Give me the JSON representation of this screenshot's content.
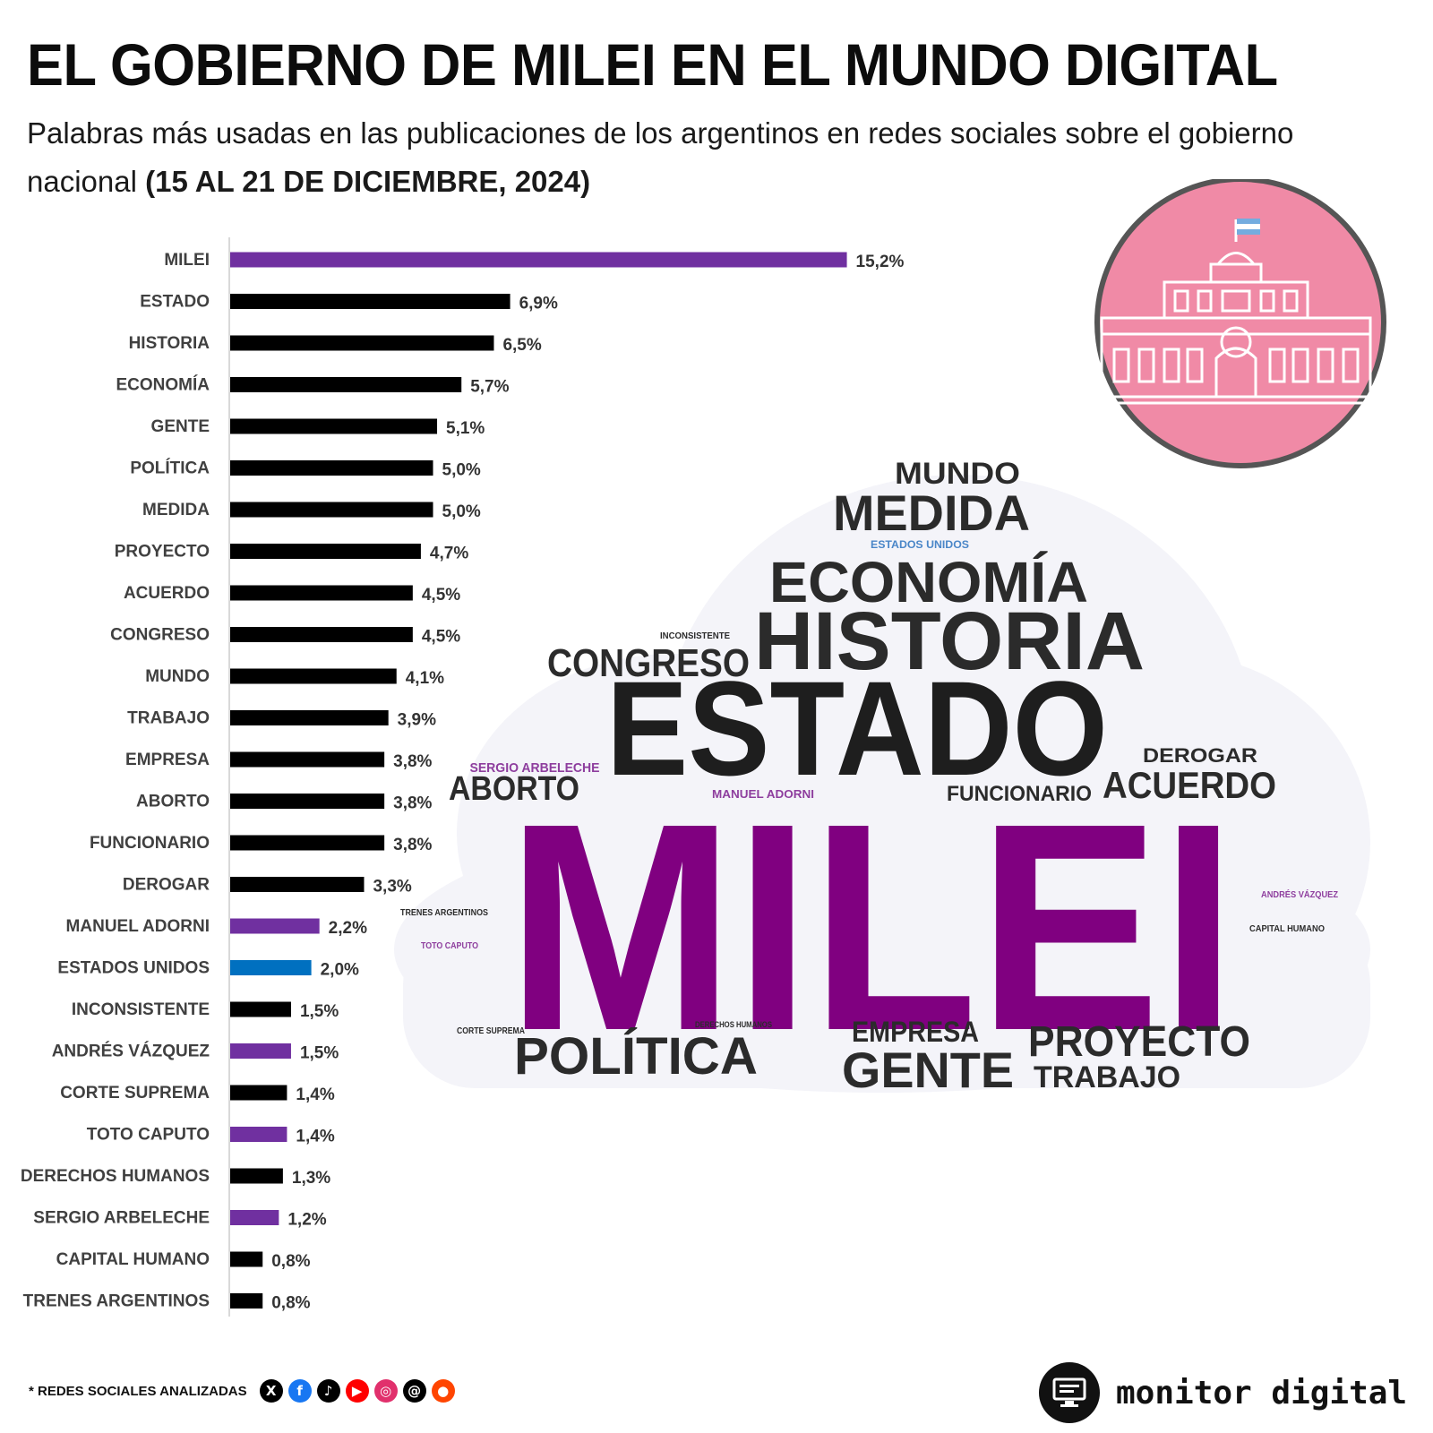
{
  "header": {
    "title": "EL GOBIERNO DE MILEI EN EL MUNDO DIGITAL",
    "subtitle": "Palabras más usadas en las publicaciones de los argentinos en redes sociales sobre el gobierno nacional",
    "date_range": "(15 AL 21 DE DICIEMBRE, 2024)"
  },
  "colors": {
    "purple_bar": "#7030a0",
    "blue_bar": "#0070c0",
    "black_bar": "#000000",
    "cloud_purple": "#800080",
    "cloud_dark": "#2b2b2b",
    "cloud_blue": "#4a86c8",
    "cloud_bg": "#f4f4f9",
    "emblem_pink": "#f08aa6",
    "emblem_border": "#555555"
  },
  "chart_data": {
    "type": "bar",
    "orientation": "horizontal",
    "title": "Palabras más usadas en las publicaciones de los argentinos en redes sociales sobre el gobierno nacional (15 AL 21 DE DICIEMBRE, 2024)",
    "xlabel": "",
    "ylabel": "",
    "xlim": [
      0,
      15.2
    ],
    "grid": false,
    "value_format": "percent_comma_1",
    "categories": [
      "MILEI",
      "ESTADO",
      "HISTORIA",
      "ECONOMÍA",
      "GENTE",
      "POLÍTICA",
      "MEDIDA",
      "PROYECTO",
      "ACUERDO",
      "CONGRESO",
      "MUNDO",
      "TRABAJO",
      "EMPRESA",
      "ABORTO",
      "FUNCIONARIO",
      "DEROGAR",
      "MANUEL ADORNI",
      "ESTADOS UNIDOS",
      "INCONSISTENTE",
      "ANDRÉS VÁZQUEZ",
      "CORTE SUPREMA",
      "TOTO CAPUTO",
      "DERECHOS HUMANOS",
      "SERGIO ARBELECHE",
      "CAPITAL HUMANO",
      "TRENES ARGENTINOS"
    ],
    "values": [
      15.2,
      6.9,
      6.5,
      5.7,
      5.1,
      5.0,
      5.0,
      4.7,
      4.5,
      4.5,
      4.1,
      3.9,
      3.8,
      3.8,
      3.8,
      3.3,
      2.2,
      2.0,
      1.5,
      1.5,
      1.4,
      1.4,
      1.3,
      1.2,
      0.8,
      0.8
    ],
    "value_labels": [
      "15,2%",
      "6,9%",
      "6,5%",
      "5,7%",
      "5,1%",
      "5,0%",
      "5,0%",
      "4,7%",
      "4,5%",
      "4,5%",
      "4,1%",
      "3,9%",
      "3,8%",
      "3,8%",
      "3,8%",
      "3,3%",
      "2,2%",
      "2,0%",
      "1,5%",
      "1,5%",
      "1,4%",
      "1,4%",
      "1,3%",
      "1,2%",
      "0,8%",
      "0,8%"
    ],
    "bar_colors": [
      "#7030a0",
      "#000000",
      "#000000",
      "#000000",
      "#000000",
      "#000000",
      "#000000",
      "#000000",
      "#000000",
      "#000000",
      "#000000",
      "#000000",
      "#000000",
      "#000000",
      "#000000",
      "#000000",
      "#7030a0",
      "#0070c0",
      "#000000",
      "#7030a0",
      "#000000",
      "#7030a0",
      "#000000",
      "#7030a0",
      "#000000",
      "#000000"
    ]
  },
  "word_cloud": {
    "words": [
      {
        "text": "MUNDO",
        "color": "#2b2b2b"
      },
      {
        "text": "MEDIDA",
        "color": "#2b2b2b"
      },
      {
        "text": "ESTADOS UNIDOS",
        "color": "#4a86c8"
      },
      {
        "text": "ECONOMÍA",
        "color": "#2b2b2b"
      },
      {
        "text": "INCONSISTENTE",
        "color": "#2b2b2b"
      },
      {
        "text": "HISTORIA",
        "color": "#2b2b2b"
      },
      {
        "text": "CONGRESO",
        "color": "#2b2b2b"
      },
      {
        "text": "ESTADO",
        "color": "#1e1e1e"
      },
      {
        "text": "DEROGAR",
        "color": "#2b2b2b"
      },
      {
        "text": "SERGIO ARBELECHE",
        "color": "#8e3e9e"
      },
      {
        "text": "ABORTO",
        "color": "#2b2b2b"
      },
      {
        "text": "MANUEL ADORNI",
        "color": "#8e3e9e"
      },
      {
        "text": "FUNCIONARIO",
        "color": "#2b2b2b"
      },
      {
        "text": "ACUERDO",
        "color": "#2b2b2b"
      },
      {
        "text": "MILEI",
        "color": "#800080"
      },
      {
        "text": "ANDRÉS VÁZQUEZ",
        "color": "#8e3e9e"
      },
      {
        "text": "TRENES ARGENTINOS",
        "color": "#2b2b2b"
      },
      {
        "text": "CAPITAL HUMANO",
        "color": "#2b2b2b"
      },
      {
        "text": "TOTO CAPUTO",
        "color": "#8e3e9e"
      },
      {
        "text": "CORTE SUPREMA",
        "color": "#2b2b2b"
      },
      {
        "text": "DERECHOS HUMANOS",
        "color": "#2b2b2b"
      },
      {
        "text": "POLÍTICA",
        "color": "#2b2b2b"
      },
      {
        "text": "EMPRESA",
        "color": "#2b2b2b"
      },
      {
        "text": "GENTE",
        "color": "#2b2b2b"
      },
      {
        "text": "PROYECTO",
        "color": "#2b2b2b"
      },
      {
        "text": "TRABAJO",
        "color": "#2b2b2b"
      }
    ]
  },
  "footer": {
    "note": "* REDES SOCIALES ANALIZADAS",
    "icons": [
      {
        "name": "x-icon",
        "glyph": "X",
        "color": "#000000"
      },
      {
        "name": "facebook-icon",
        "glyph": "f",
        "color": "#1877f2"
      },
      {
        "name": "tiktok-icon",
        "glyph": "♪",
        "color": "#000000"
      },
      {
        "name": "youtube-icon",
        "glyph": "▶",
        "color": "#ff0000"
      },
      {
        "name": "instagram-icon",
        "glyph": "◎",
        "color": "#e1306c"
      },
      {
        "name": "threads-icon",
        "glyph": "@",
        "color": "#000000"
      },
      {
        "name": "reddit-icon",
        "glyph": "●",
        "color": "#ff4500"
      }
    ],
    "brand": "monitor digital"
  }
}
